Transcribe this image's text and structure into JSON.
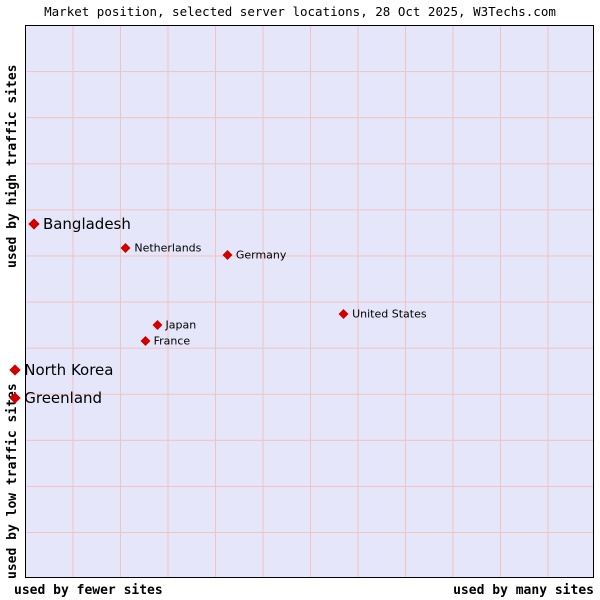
{
  "title": "Market position, selected server locations, 28 Oct 2025, W3Techs.com",
  "axis_labels": {
    "left_top": "used by high traffic sites",
    "left_bottom": "used by low traffic sites",
    "bottom_left": "used by fewer sites",
    "bottom_right": "used by many sites"
  },
  "colors": {
    "plot_bg": "#e6e6fa",
    "grid": "#f0c2c2",
    "point": "#cc0000",
    "border": "#000000"
  },
  "chart_data": {
    "type": "scatter",
    "title": "Market position, selected server locations, 28 Oct 2025, W3Techs.com",
    "x_axis": {
      "label_low": "used by fewer sites",
      "label_high": "used by many sites",
      "scale": "qualitative, no numeric ticks"
    },
    "y_axis": {
      "label_low": "used by low traffic sites",
      "label_high": "used by high traffic sites",
      "scale": "qualitative, no numeric ticks"
    },
    "grid": true,
    "marker": "red diamond",
    "points": [
      {
        "label": "Bangladesh",
        "x_pct": 1.4,
        "y_pct": 36.0,
        "emphasis": true
      },
      {
        "label": "Netherlands",
        "x_pct": 17.7,
        "y_pct": 40.3,
        "emphasis": false
      },
      {
        "label": "Germany",
        "x_pct": 35.6,
        "y_pct": 41.6,
        "emphasis": false
      },
      {
        "label": "United States",
        "x_pct": 56.1,
        "y_pct": 52.3,
        "emphasis": false
      },
      {
        "label": "Japan",
        "x_pct": 23.2,
        "y_pct": 54.2,
        "emphasis": false
      },
      {
        "label": "France",
        "x_pct": 21.1,
        "y_pct": 57.1,
        "emphasis": false
      },
      {
        "label": "North Korea",
        "x_pct": -1.9,
        "y_pct": 62.4,
        "emphasis": true
      },
      {
        "label": "Greenland",
        "x_pct": -1.9,
        "y_pct": 67.6,
        "emphasis": true
      }
    ]
  }
}
